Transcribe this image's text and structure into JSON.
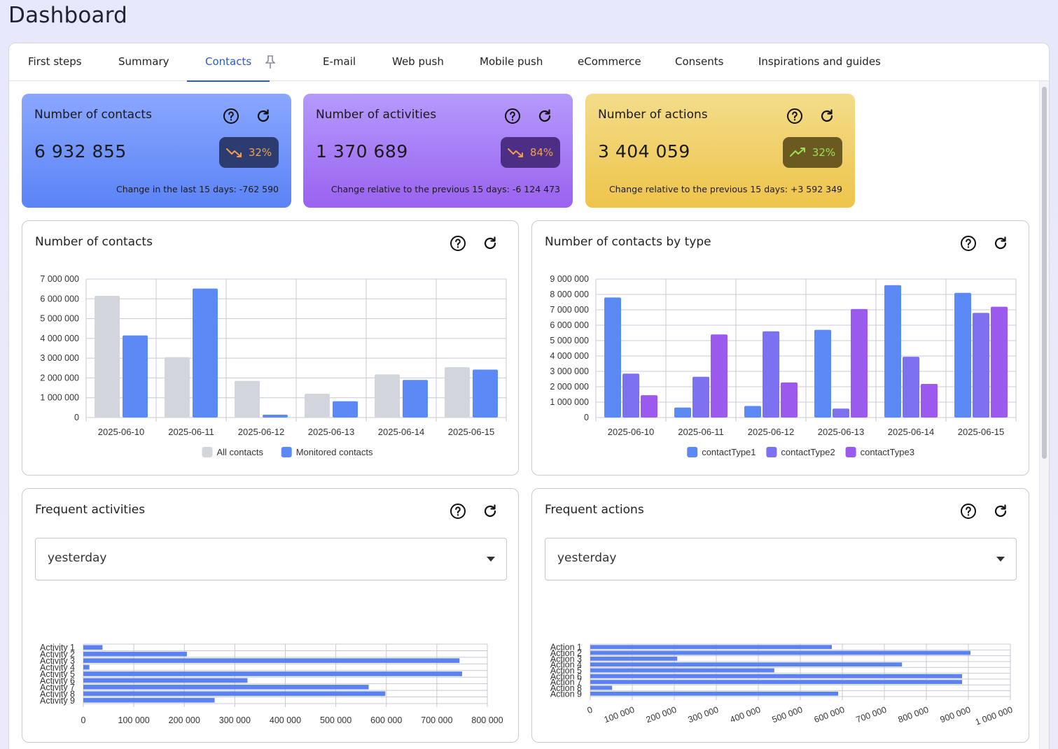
{
  "page": {
    "title": "Dashboard"
  },
  "tabs": [
    {
      "label": "First steps"
    },
    {
      "label": "Summary"
    },
    {
      "label": "Contacts"
    },
    {
      "label": "E-mail"
    },
    {
      "label": "Web push"
    },
    {
      "label": "Mobile push"
    },
    {
      "label": "eCommerce"
    },
    {
      "label": "Consents"
    },
    {
      "label": "Inspirations and guides"
    }
  ],
  "active_tab": "Contacts",
  "kpis": [
    {
      "title": "Number of contacts",
      "value": "6 932 855",
      "change_pct": "32%",
      "trend": "down",
      "footer": "Change in the last 15 days: -762 590"
    },
    {
      "title": "Number of activities",
      "value": "1 370 689",
      "change_pct": "84%",
      "trend": "down",
      "footer": "Change relative to the previous 15 days: -6 124 473"
    },
    {
      "title": "Number of actions",
      "value": "3 404 059",
      "change_pct": "32%",
      "trend": "up",
      "footer": "Change relative to the previous 15 days: +3 592 349"
    }
  ],
  "colors": {
    "all_contacts": "#d3d5dd",
    "monitored": "#5b8af7",
    "type1": "#5b8af7",
    "type2": "#7c71f0",
    "type3": "#9b59ee",
    "hbar": "#5b82ef",
    "grid": "#c8c8d6",
    "active_tab": "#2a59c9"
  },
  "cards": {
    "contacts": {
      "title": "Number of contacts"
    },
    "by_type": {
      "title": "Number of contacts by type"
    },
    "activities": {
      "title": "Frequent activities",
      "select_value": "yesterday"
    },
    "actions": {
      "title": "Frequent actions",
      "select_value": "yesterday"
    }
  },
  "chart_data": [
    {
      "id": "contacts",
      "type": "bar",
      "title": "Number of contacts",
      "categories": [
        "2025-06-10",
        "2025-06-11",
        "2025-06-12",
        "2025-06-13",
        "2025-06-14",
        "2025-06-15"
      ],
      "series": [
        {
          "name": "All contacts",
          "values": [
            6150000,
            3050000,
            1850000,
            1200000,
            2180000,
            2540000
          ]
        },
        {
          "name": "Monitored contacts",
          "values": [
            4150000,
            6520000,
            140000,
            820000,
            1900000,
            2420000
          ]
        }
      ],
      "ylim": [
        0,
        7000000
      ],
      "yticks": [
        "0",
        "1 000 000",
        "2 000 000",
        "3 000 000",
        "4 000 000",
        "5 000 000",
        "6 000 000",
        "7 000 000"
      ],
      "legend": "bottom",
      "grid": true
    },
    {
      "id": "by_type",
      "type": "bar",
      "title": "Number of contacts by type",
      "categories": [
        "2025-06-10",
        "2025-06-11",
        "2025-06-12",
        "2025-06-13",
        "2025-06-14",
        "2025-06-15"
      ],
      "series": [
        {
          "name": "contactType1",
          "values": [
            7800000,
            650000,
            750000,
            5700000,
            8600000,
            8100000
          ]
        },
        {
          "name": "contactType2",
          "values": [
            2850000,
            2650000,
            5600000,
            580000,
            3950000,
            6800000
          ]
        },
        {
          "name": "contactType3",
          "values": [
            1450000,
            5400000,
            2280000,
            7050000,
            2180000,
            7200000
          ]
        }
      ],
      "ylim": [
        0,
        9000000
      ],
      "yticks": [
        "0",
        "1 000 000",
        "2 000 000",
        "3 000 000",
        "4 000 000",
        "5 000 000",
        "6 000 000",
        "7 000 000",
        "8 000 000",
        "9 000 000"
      ],
      "legend": "bottom",
      "grid": true
    },
    {
      "id": "activities",
      "type": "bar",
      "orientation": "horizontal",
      "title": "Frequent activities",
      "categories": [
        "Activity 1",
        "Activity 2",
        "Activity 3",
        "Activity 4",
        "Activity 5",
        "Activity 6",
        "Activity 7",
        "Activity 8",
        "Activity 9"
      ],
      "values": [
        38000,
        205000,
        745000,
        12000,
        750000,
        325000,
        565000,
        598000,
        260000
      ],
      "xlim": [
        0,
        800000
      ],
      "xticks": [
        "0",
        "100 000",
        "200 000",
        "300 000",
        "400 000",
        "500 000",
        "600 000",
        "700 000",
        "800 000"
      ],
      "grid": true
    },
    {
      "id": "actions",
      "type": "bar",
      "orientation": "horizontal",
      "title": "Frequent actions",
      "categories": [
        "Action 1",
        "Action 2",
        "Action 3",
        "Action 4",
        "Action 5",
        "Action 6",
        "Action 7",
        "Action 8",
        "Action 9"
      ],
      "values": [
        575000,
        905000,
        207000,
        742000,
        438000,
        885000,
        885000,
        52000,
        590000
      ],
      "xlim": [
        0,
        1000000
      ],
      "xticks": [
        "0",
        "100 000",
        "200 000",
        "300 000",
        "400 000",
        "500 000",
        "600 000",
        "700 000",
        "800 000",
        "900 000",
        "1 000 000"
      ],
      "grid": true
    }
  ]
}
